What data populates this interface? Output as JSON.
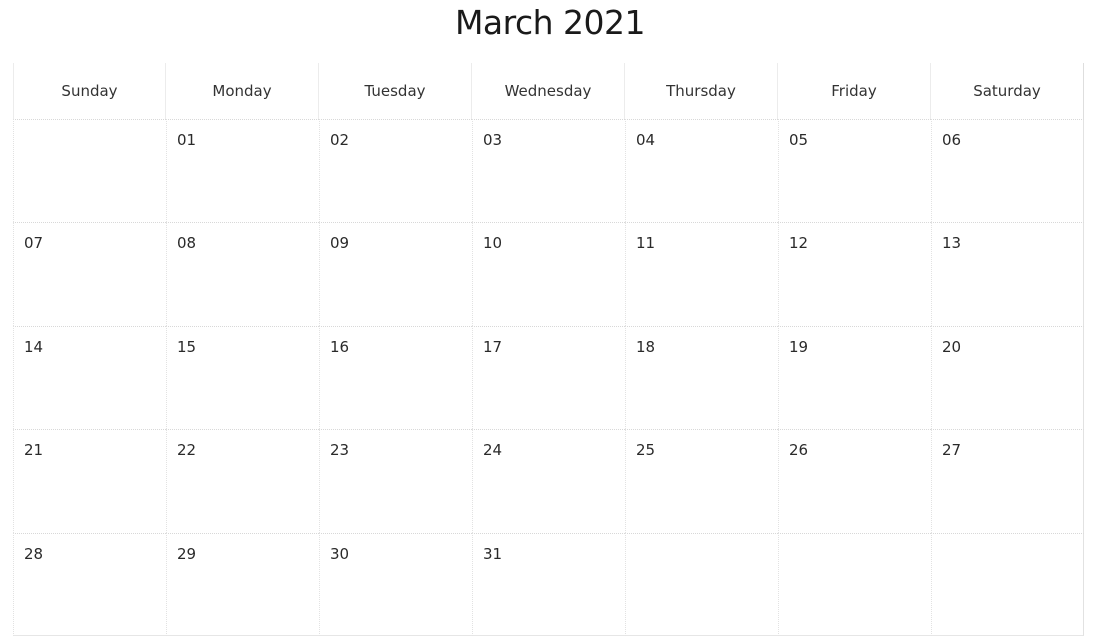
{
  "calendar": {
    "title": "March 2021",
    "weekdays": [
      "Sunday",
      "Monday",
      "Tuesday",
      "Wednesday",
      "Thursday",
      "Friday",
      "Saturday"
    ],
    "weeks": [
      [
        "",
        "01",
        "02",
        "03",
        "04",
        "05",
        "06"
      ],
      [
        "07",
        "08",
        "09",
        "10",
        "11",
        "12",
        "13"
      ],
      [
        "14",
        "15",
        "16",
        "17",
        "18",
        "19",
        "20"
      ],
      [
        "21",
        "22",
        "23",
        "24",
        "25",
        "26",
        "27"
      ],
      [
        "28",
        "29",
        "30",
        "31",
        "",
        "",
        ""
      ]
    ]
  }
}
